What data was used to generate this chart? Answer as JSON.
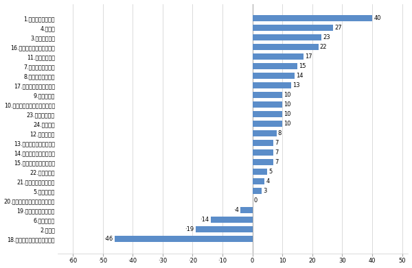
{
  "categories": [
    "1.看護師、准看護師",
    "4.保育士",
    "3.介護へルパー",
    "16.飲食店調理・調理補助員",
    "11.食料品販売員",
    "7.受付・案内事務員",
    "8.営業・販売事務員",
    "17.飲食店接客サービス員",
    "9.レジ担当者",
    "10.コンビニエンスストア販売員",
    "23.倉庫内作業員",
    "24.軽作業員",
    "12.服飾販売員",
    "13.生活用品・雑貨販売員",
    "14.店頭取次ぎサービス員",
    "15.給食調理・調理補助員",
    "22.清掃作業員",
    "21.その他の製造作業員",
    "5.医療事務員",
    "20.食料品・食品原料製造作業員",
    "19.物品配送ドライバー",
    "6.一般事務員",
    "2.薬剤師",
    "18.娯楽場等の接客サービス員"
  ],
  "values": [
    40,
    27,
    23,
    22,
    17,
    15,
    14,
    13,
    10,
    10,
    10,
    10,
    8,
    7,
    7,
    7,
    5,
    4,
    3,
    0,
    -4,
    -14,
    -19,
    -46
  ],
  "bar_color": "#5b8dc9",
  "xlim": [
    -65,
    52
  ],
  "xticks": [
    -60,
    -50,
    -40,
    -30,
    -20,
    -10,
    0,
    10,
    20,
    30,
    40,
    50
  ],
  "figure_width": 6.0,
  "figure_height": 3.91,
  "background_color": "#ffffff",
  "grid_color": "#cccccc",
  "bar_height": 0.65,
  "font_size_labels": 5.8,
  "font_size_values": 6.0
}
